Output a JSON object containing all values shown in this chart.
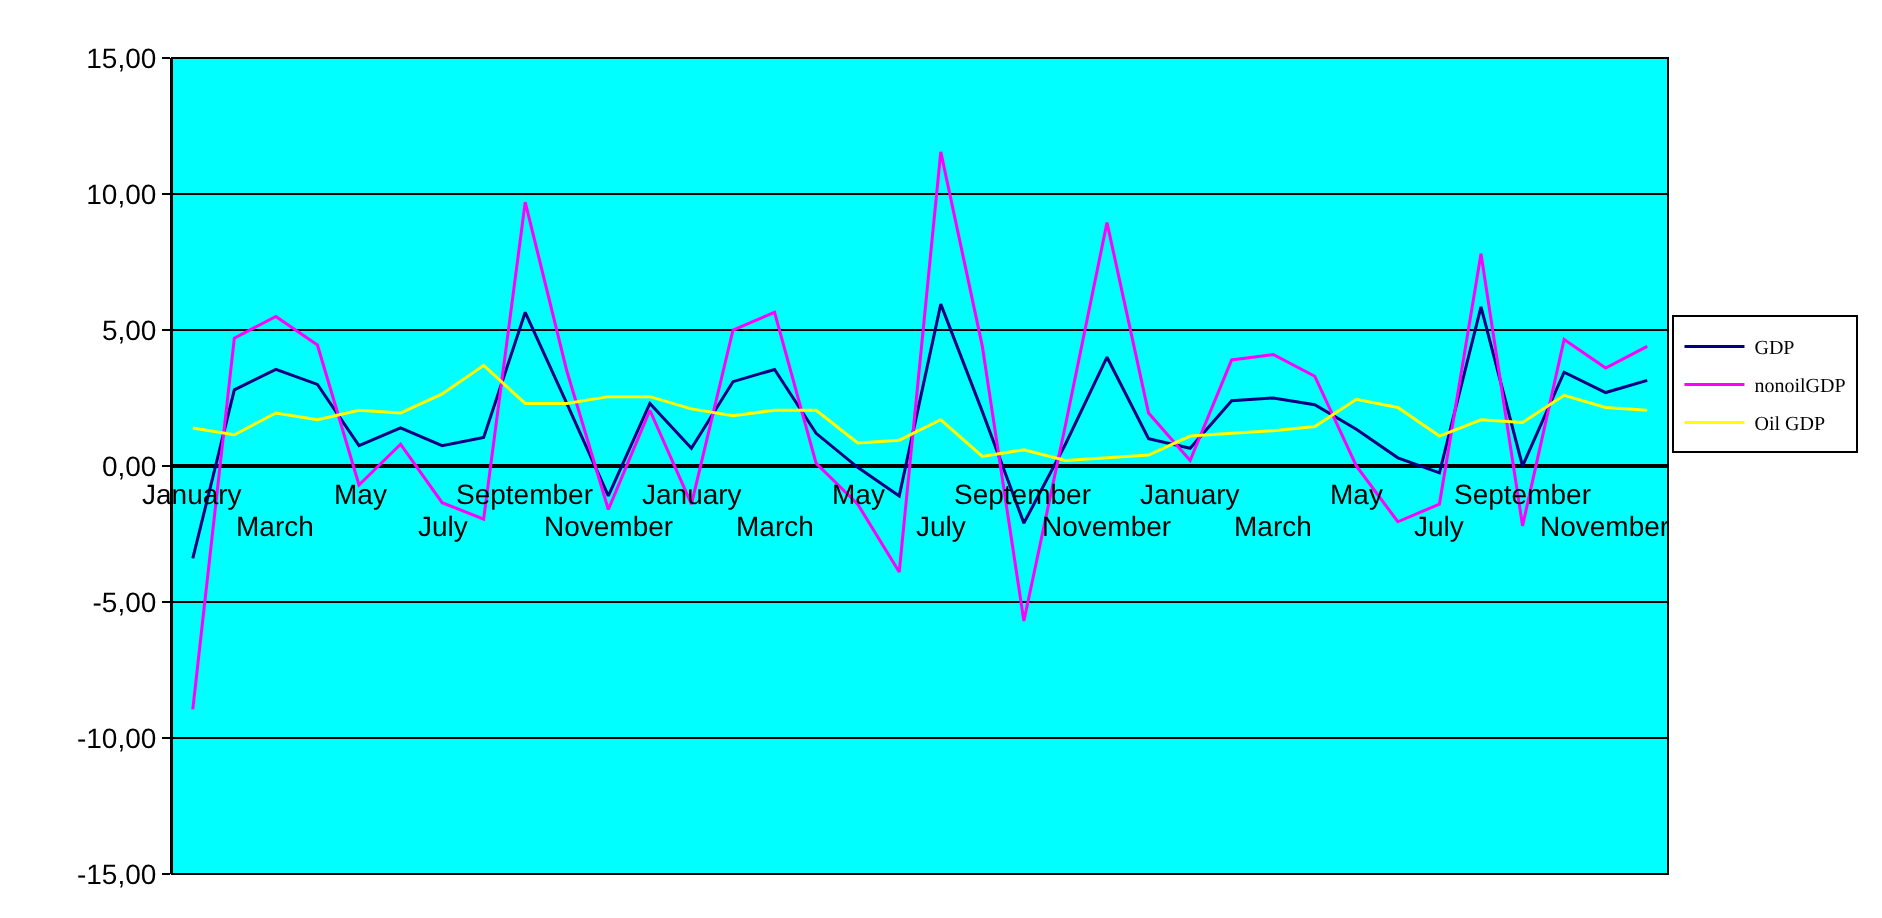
{
  "chart_data": {
    "type": "line",
    "categories": [
      "January",
      null,
      "March",
      null,
      "May",
      null,
      "July",
      null,
      "September",
      null,
      "November",
      null,
      "January",
      null,
      "March",
      null,
      "May",
      null,
      "July",
      null,
      "September",
      null,
      "November",
      null,
      "January",
      null,
      "March",
      null,
      "May",
      null,
      "July",
      null,
      "September",
      null,
      "November",
      null
    ],
    "series": [
      {
        "name": "GDP",
        "color": "#000080",
        "values": [
          -3.4,
          2.8,
          3.55,
          3.0,
          0.75,
          1.4,
          0.75,
          1.05,
          5.65,
          2.3,
          -1.1,
          2.3,
          0.65,
          3.1,
          3.55,
          1.2,
          -0.05,
          -1.1,
          5.95,
          2.0,
          -2.1,
          0.8,
          4.0,
          1.0,
          0.65,
          2.4,
          2.5,
          2.25,
          1.35,
          0.3,
          -0.25,
          5.85,
          0.0,
          3.45,
          2.7,
          3.15
        ]
      },
      {
        "name": "nonoilGDP",
        "color": "#ff00ff",
        "values": [
          -8.95,
          4.7,
          5.5,
          4.45,
          -0.7,
          0.8,
          -1.35,
          -1.95,
          9.7,
          3.5,
          -1.6,
          2.05,
          -1.4,
          5.0,
          5.65,
          0.1,
          -1.4,
          -3.9,
          11.55,
          4.4,
          -5.7,
          1.5,
          8.95,
          1.95,
          0.2,
          3.9,
          4.1,
          3.3,
          0.0,
          -2.05,
          -1.4,
          7.8,
          -2.2,
          4.65,
          3.6,
          4.4
        ]
      },
      {
        "name": "Oil GDP",
        "color": "#ffff00",
        "values": [
          1.4,
          1.15,
          1.95,
          1.7,
          2.05,
          1.95,
          2.65,
          3.7,
          2.3,
          2.3,
          2.55,
          2.55,
          2.1,
          1.85,
          2.05,
          2.05,
          0.85,
          0.95,
          1.7,
          0.35,
          0.6,
          0.2,
          0.3,
          0.4,
          1.1,
          1.2,
          1.3,
          1.45,
          2.45,
          2.15,
          1.1,
          1.7,
          1.6,
          2.6,
          2.15,
          2.05
        ]
      }
    ],
    "ylim": [
      -15,
      15
    ],
    "yticks": [
      {
        "value": -15,
        "label": "-15,00"
      },
      {
        "value": -10,
        "label": "-10,00"
      },
      {
        "value": -5,
        "label": "-5,00"
      },
      {
        "value": 0,
        "label": "0,00"
      },
      {
        "value": 5,
        "label": "5,00"
      },
      {
        "value": 10,
        "label": "10,00"
      },
      {
        "value": 15,
        "label": "15,00"
      }
    ],
    "grid": "y",
    "legend": "right",
    "marker": "none",
    "line_style": "solid"
  }
}
